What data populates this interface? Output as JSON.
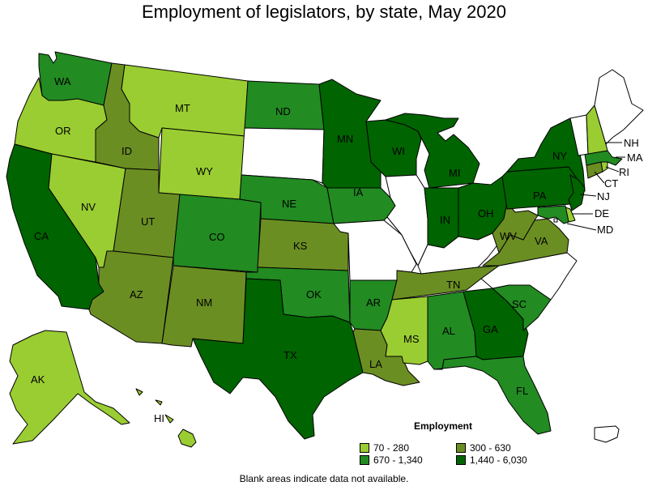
{
  "title": "Employment of legislators, by state, May 2020",
  "legend": {
    "title": "Employment",
    "items": [
      {
        "label": "70 - 280",
        "color": "#9acd32"
      },
      {
        "label": "300 - 630",
        "color": "#6b8e23"
      },
      {
        "label": "670 - 1,340",
        "color": "#228b22"
      },
      {
        "label": "1,440 - 6,030",
        "color": "#006400"
      }
    ]
  },
  "footnote": "Blank areas indicate data not available.",
  "colors": {
    "no_data": "#ffffff",
    "border": "#000000"
  },
  "states": [
    {
      "abbr": "WA",
      "bin": 2
    },
    {
      "abbr": "OR",
      "bin": 0
    },
    {
      "abbr": "CA",
      "bin": 3
    },
    {
      "abbr": "NV",
      "bin": 0
    },
    {
      "abbr": "ID",
      "bin": 1
    },
    {
      "abbr": "MT",
      "bin": 0
    },
    {
      "abbr": "WY",
      "bin": 0
    },
    {
      "abbr": "UT",
      "bin": 1
    },
    {
      "abbr": "AZ",
      "bin": 1
    },
    {
      "abbr": "CO",
      "bin": 2
    },
    {
      "abbr": "NM",
      "bin": 1
    },
    {
      "abbr": "ND",
      "bin": 2
    },
    {
      "abbr": "SD",
      "bin": null
    },
    {
      "abbr": "NE",
      "bin": 2
    },
    {
      "abbr": "KS",
      "bin": 1
    },
    {
      "abbr": "OK",
      "bin": 2
    },
    {
      "abbr": "TX",
      "bin": 3
    },
    {
      "abbr": "MN",
      "bin": 3
    },
    {
      "abbr": "IA",
      "bin": 2
    },
    {
      "abbr": "MO",
      "bin": null
    },
    {
      "abbr": "AR",
      "bin": 2
    },
    {
      "abbr": "LA",
      "bin": 1
    },
    {
      "abbr": "WI",
      "bin": 3
    },
    {
      "abbr": "IL",
      "bin": null
    },
    {
      "abbr": "MI",
      "bin": 3
    },
    {
      "abbr": "IN",
      "bin": 3
    },
    {
      "abbr": "OH",
      "bin": 3
    },
    {
      "abbr": "KY",
      "bin": null
    },
    {
      "abbr": "TN",
      "bin": 1
    },
    {
      "abbr": "MS",
      "bin": 0
    },
    {
      "abbr": "AL",
      "bin": 2
    },
    {
      "abbr": "GA",
      "bin": 3
    },
    {
      "abbr": "FL",
      "bin": 2
    },
    {
      "abbr": "SC",
      "bin": 2
    },
    {
      "abbr": "NC",
      "bin": null
    },
    {
      "abbr": "VA",
      "bin": 1
    },
    {
      "abbr": "WV",
      "bin": 1
    },
    {
      "abbr": "PA",
      "bin": 3
    },
    {
      "abbr": "NY",
      "bin": 3
    },
    {
      "abbr": "VT",
      "bin": null
    },
    {
      "abbr": "NH",
      "bin": 0
    },
    {
      "abbr": "ME",
      "bin": null
    },
    {
      "abbr": "MA",
      "bin": 2
    },
    {
      "abbr": "RI",
      "bin": 0
    },
    {
      "abbr": "CT",
      "bin": 1
    },
    {
      "abbr": "NJ",
      "bin": 3
    },
    {
      "abbr": "DE",
      "bin": 0
    },
    {
      "abbr": "MD",
      "bin": 2
    },
    {
      "abbr": "DC",
      "bin": null
    },
    {
      "abbr": "AK",
      "bin": 0
    },
    {
      "abbr": "HI",
      "bin": 0
    },
    {
      "abbr": "PR",
      "bin": null
    }
  ]
}
